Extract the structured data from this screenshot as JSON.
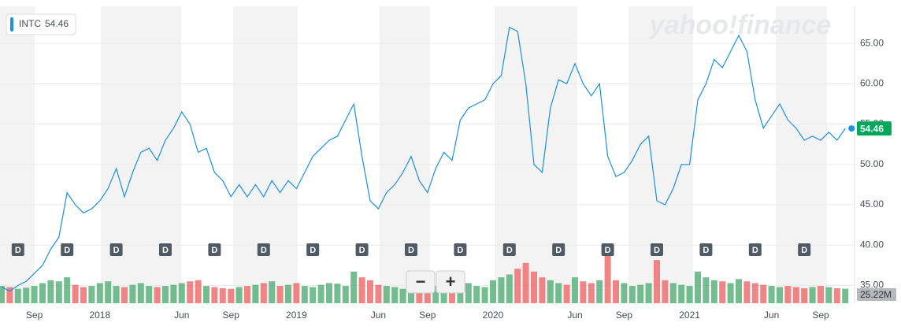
{
  "chart_data": {
    "type": "line",
    "watermark": "yahoo!finance",
    "zoom_buttons": [
      "−",
      "+"
    ],
    "dividend_label": "D",
    "categories": [
      null,
      null,
      null,
      null,
      "Sep",
      null,
      null,
      null,
      null,
      null,
      null,
      null,
      "2018",
      null,
      null,
      null,
      null,
      null,
      null,
      null,
      null,
      null,
      "Jun",
      null,
      null,
      null,
      null,
      null,
      "Sep",
      null,
      null,
      null,
      null,
      null,
      null,
      null,
      "2019",
      null,
      null,
      null,
      null,
      null,
      null,
      null,
      null,
      null,
      "Jun",
      null,
      null,
      null,
      null,
      null,
      "Sep",
      null,
      null,
      null,
      null,
      null,
      null,
      null,
      "2020",
      null,
      null,
      null,
      null,
      null,
      null,
      null,
      null,
      null,
      "Jun",
      null,
      null,
      null,
      null,
      null,
      "Sep",
      null,
      null,
      null,
      null,
      null,
      null,
      null,
      "2021",
      null,
      null,
      null,
      null,
      null,
      null,
      null,
      null,
      null,
      "Jun",
      null,
      null,
      null,
      null,
      null,
      "Sep",
      null,
      null,
      null
    ],
    "series": [
      {
        "name": "INTC",
        "color": "#1a8fe3",
        "values": [
          34.8,
          34.3,
          35.0,
          35.5,
          36.5,
          37.5,
          39.5,
          41,
          46.5,
          45,
          44,
          44.5,
          45.5,
          47,
          49.5,
          46,
          49,
          51.5,
          52,
          50.5,
          53,
          54.5,
          56.5,
          55,
          51.5,
          52,
          49,
          48,
          46,
          47.5,
          46,
          47.5,
          46,
          48,
          46.5,
          48,
          47,
          49,
          51,
          52,
          53,
          53.5,
          55.5,
          57.5,
          51,
          45.5,
          44.5,
          46.5,
          47.5,
          49,
          51,
          48,
          46.5,
          49.5,
          51.5,
          50.5,
          55.5,
          57,
          57.5,
          58,
          60,
          61,
          67,
          66.5,
          60,
          50,
          49,
          57,
          60.5,
          60,
          62.5,
          60,
          58.5,
          60,
          51,
          48.5,
          49,
          50.5,
          52.5,
          53.5,
          45.5,
          45,
          47,
          50,
          50,
          58,
          60,
          63,
          62,
          64,
          66,
          64,
          58,
          54.5,
          56,
          57.5,
          55.5,
          54.5,
          53,
          53.5,
          53,
          54,
          53,
          54.46
        ]
      },
      {
        "name": "Volume",
        "axis": "y2",
        "up_color": "#5cb27d",
        "down_color": "#ef6f6f",
        "values": [
          30,
          28,
          25,
          27,
          30,
          35,
          40,
          38,
          45,
          32,
          28,
          30,
          35,
          38,
          30,
          28,
          32,
          35,
          30,
          28,
          30,
          32,
          35,
          38,
          40,
          30,
          28,
          26,
          25,
          28,
          30,
          32,
          35,
          38,
          30,
          32,
          35,
          30,
          28,
          32,
          35,
          34,
          30,
          55,
          45,
          40,
          32,
          30,
          28,
          25,
          30,
          28,
          26,
          30,
          32,
          28,
          30,
          35,
          30,
          28,
          40,
          45,
          50,
          60,
          70,
          55,
          45,
          40,
          35,
          32,
          45,
          38,
          35,
          40,
          85,
          40,
          35,
          30,
          32,
          35,
          75,
          40,
          35,
          32,
          30,
          55,
          45,
          40,
          38,
          35,
          42,
          38,
          35,
          32,
          30,
          28,
          30,
          28,
          26,
          28,
          30,
          28,
          26,
          25.22
        ],
        "value_labels": [
          null,
          null,
          null,
          null,
          null,
          null,
          null,
          null,
          null,
          null,
          null,
          null,
          null,
          null,
          null,
          null,
          null,
          null,
          null,
          null,
          null,
          null,
          null,
          null,
          null,
          null,
          null,
          null,
          null,
          null,
          null,
          null,
          null,
          null,
          null,
          null,
          null,
          null,
          null,
          null,
          null,
          null,
          null,
          null,
          null,
          null,
          null,
          null,
          null,
          null,
          null,
          null,
          null,
          null,
          null,
          null,
          null,
          null,
          null,
          null,
          null,
          null,
          null,
          null,
          null,
          null,
          null,
          null,
          null,
          null,
          null,
          null,
          null,
          null,
          null,
          null,
          null,
          null,
          null,
          null,
          null,
          null,
          null,
          null,
          null,
          null,
          null,
          null,
          null,
          null,
          null,
          null,
          null,
          null,
          null,
          null,
          null,
          null,
          null,
          null,
          null,
          null,
          null,
          "25.22M"
        ]
      }
    ],
    "ylim": [
      32.8,
      69.6
    ],
    "yticks": [
      {
        "value": 35,
        "label": "35.00"
      },
      {
        "value": 40,
        "label": "40.00"
      },
      {
        "value": 45,
        "label": "45.00"
      },
      {
        "value": 50,
        "label": "50.00"
      },
      {
        "value": 55,
        "label": "55.00"
      },
      {
        "value": 60,
        "label": "60.00"
      },
      {
        "value": 65,
        "label": "65.00"
      }
    ],
    "y2lim": [
      0,
      130
    ],
    "grid": true,
    "last_value_color": "#00a65a"
  }
}
